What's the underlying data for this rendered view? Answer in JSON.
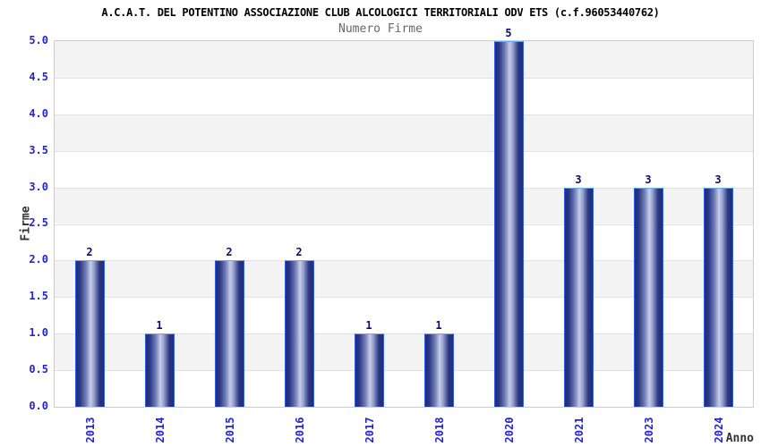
{
  "chart_data": {
    "type": "bar",
    "title": "A.C.A.T. DEL POTENTINO ASSOCIAZIONE CLUB ALCOLOGICI TERRITORIALI ODV ETS (c.f.96053440762)",
    "subtitle": "Numero Firme",
    "xlabel": "Anno",
    "ylabel": "Firme",
    "categories": [
      "2013",
      "2014",
      "2015",
      "2016",
      "2017",
      "2018",
      "2020",
      "2021",
      "2023",
      "2024"
    ],
    "values": [
      2,
      1,
      2,
      2,
      1,
      1,
      5,
      3,
      3,
      3
    ],
    "ylim": [
      0,
      5
    ],
    "ytick_step": 0.5,
    "ytick_labels": [
      "0.0",
      "0.5",
      "1.0",
      "1.5",
      "2.0",
      "2.5",
      "3.0",
      "3.5",
      "4.0",
      "4.5",
      "5.0"
    ],
    "grid": true,
    "legend": "none",
    "background_bands": true,
    "colors": {
      "title": "#000000",
      "subtitle": "#666666",
      "axis_title": "#333333",
      "tick_label": "#2424cf",
      "value_label": "#0c0c6e",
      "bar_dark": "#222c78",
      "bar_mid": "#7280b8",
      "bar_light": "#c6cde8",
      "bar_border": "#2f5fe8",
      "bar_border_top": "#6aaaf2",
      "band_gray": "#f3f3f3",
      "band_white": "#ffffff",
      "gridline": "#e2e2e2",
      "plot_border": "#cccccc"
    }
  }
}
